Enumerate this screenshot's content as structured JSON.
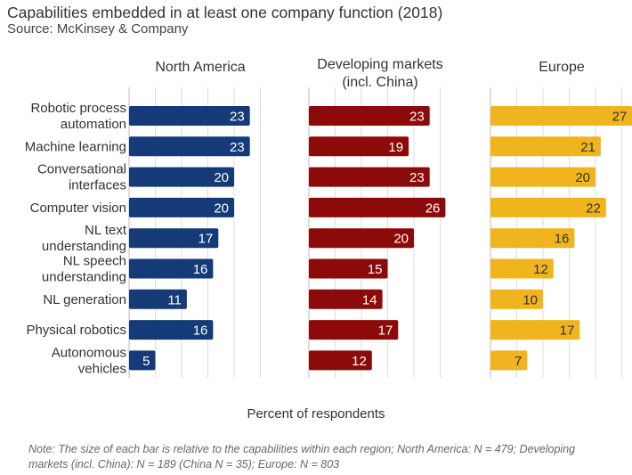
{
  "header": {
    "title": "Capabilities embedded in at least one company function (2018)",
    "subtitle": "Source: McKinsey & Company"
  },
  "note": "Note: The size of each bar is relative to the capabilities within each region; North America: N = 479; Developing markets (incl. China): N = 189 (China N = 35); Europe: N = 803",
  "chart_data": {
    "type": "bar",
    "orientation": "horizontal",
    "title": "Capabilities embedded in at least one company function (2018)",
    "subtitle": "Source: McKinsey & Company",
    "xlabel": "Percent of respondents",
    "ylabel": "",
    "grid": true,
    "legend": "none",
    "categories": [
      [
        "Robotic process",
        "automation"
      ],
      [
        "Machine learning"
      ],
      [
        "Conversational",
        "interfaces"
      ],
      [
        "Computer vision"
      ],
      [
        "NL text",
        "understanding"
      ],
      [
        "NL speech",
        "understanding"
      ],
      [
        "NL generation"
      ],
      [
        "Physical robotics"
      ],
      [
        "Autonomous",
        "vehicles"
      ]
    ],
    "series": [
      {
        "name": "North America",
        "header": [
          "North America"
        ],
        "color": "#143a78",
        "values": [
          23,
          23,
          20,
          20,
          17,
          16,
          11,
          16,
          5
        ]
      },
      {
        "name": "Developing markets (incl. China)",
        "header": [
          "Developing markets",
          "(incl. China)"
        ],
        "color": "#8c0a0a",
        "values": [
          23,
          19,
          23,
          26,
          20,
          15,
          14,
          17,
          12
        ]
      },
      {
        "name": "Europe",
        "header": [
          "Europe"
        ],
        "color": "#f0b41e",
        "values": [
          27,
          21,
          20,
          22,
          16,
          12,
          10,
          17,
          7
        ]
      }
    ]
  }
}
